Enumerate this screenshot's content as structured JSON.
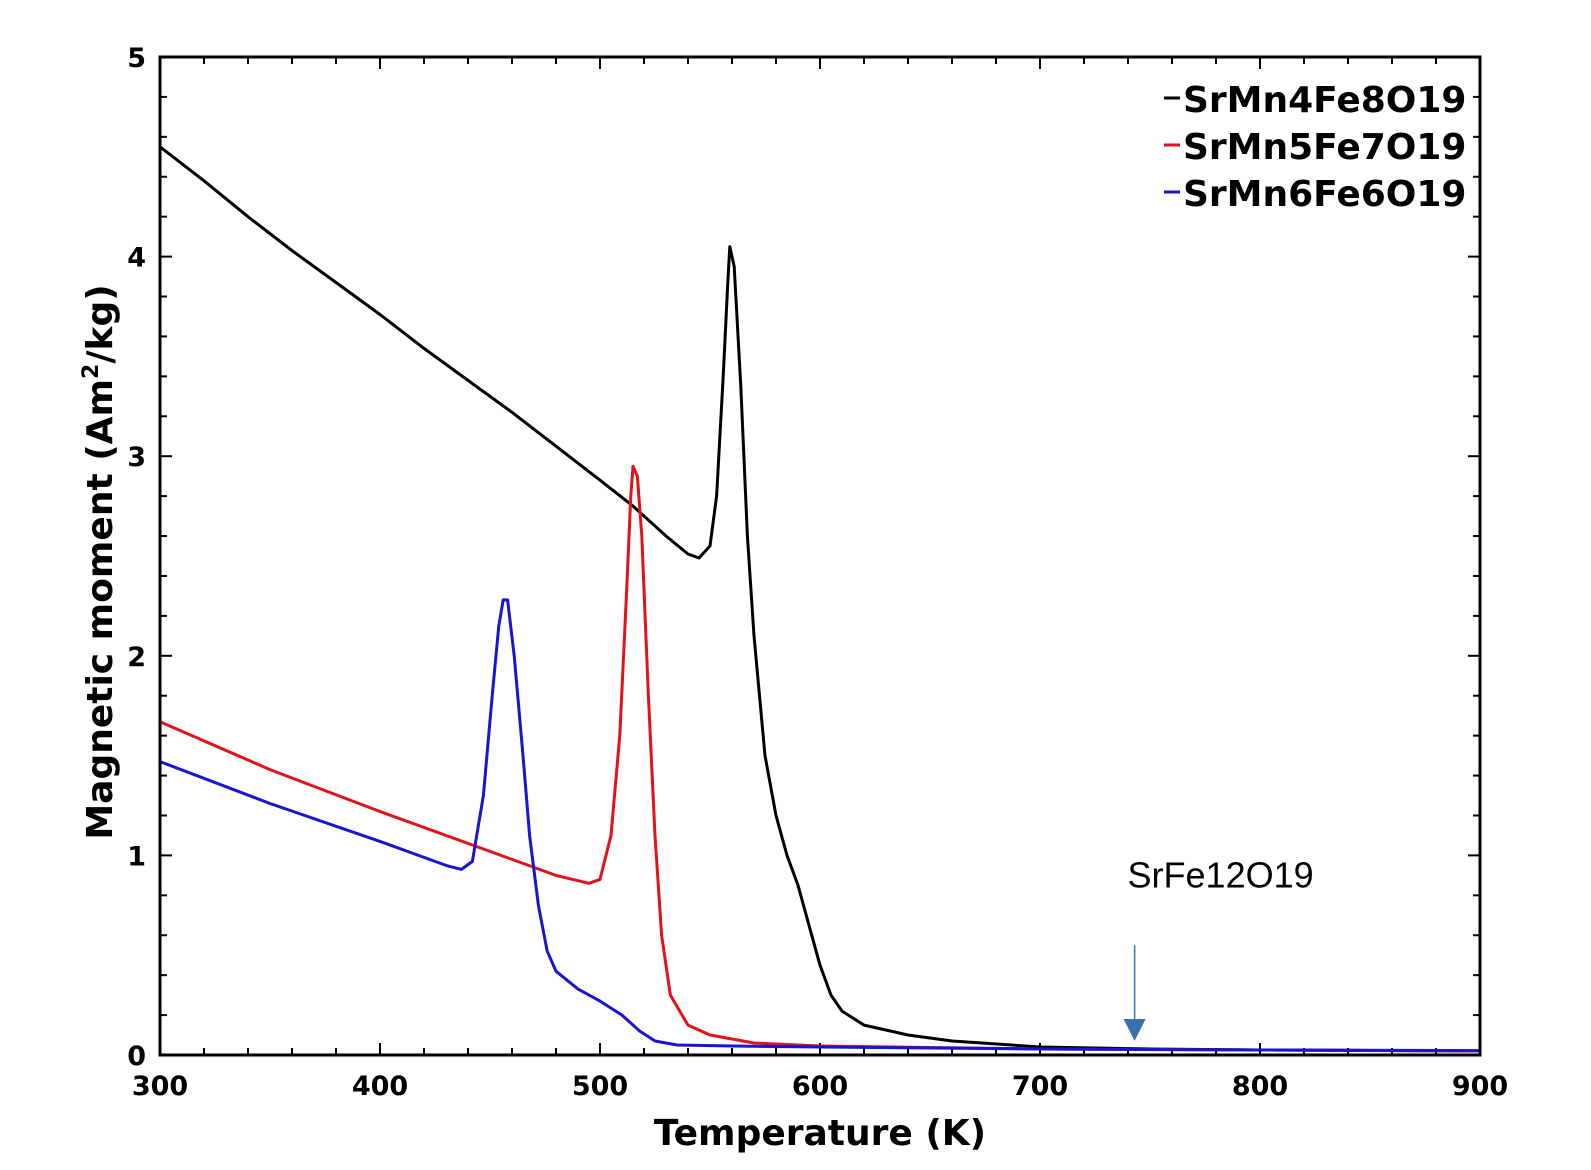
{
  "chart_data": {
    "type": "line",
    "title": "",
    "xlabel": "Temperature (K)",
    "ylabel": "Magnetic moment (Am",
    "ylabel_sup": "2",
    "ylabel_tail": "/kg)",
    "xlim": [
      300,
      900
    ],
    "ylim": [
      0,
      5
    ],
    "xticks": [
      "300",
      "400",
      "500",
      "600",
      "700",
      "800",
      "900"
    ],
    "yticks": [
      "0",
      "1",
      "2",
      "3",
      "4",
      "5"
    ],
    "grid": false,
    "legend": "top-right",
    "series": [
      {
        "name": "SrMn4Fe8O19",
        "color": "#000000",
        "points": [
          [
            300,
            4.55
          ],
          [
            320,
            4.38
          ],
          [
            340,
            4.2
          ],
          [
            360,
            4.03
          ],
          [
            380,
            3.87
          ],
          [
            400,
            3.71
          ],
          [
            420,
            3.54
          ],
          [
            440,
            3.38
          ],
          [
            460,
            3.22
          ],
          [
            480,
            3.05
          ],
          [
            500,
            2.88
          ],
          [
            515,
            2.75
          ],
          [
            530,
            2.6
          ],
          [
            540,
            2.51
          ],
          [
            545,
            2.49
          ],
          [
            550,
            2.55
          ],
          [
            553,
            2.8
          ],
          [
            556,
            3.4
          ],
          [
            558,
            3.85
          ],
          [
            559,
            4.05
          ],
          [
            561,
            3.95
          ],
          [
            564,
            3.35
          ],
          [
            567,
            2.6
          ],
          [
            570,
            2.1
          ],
          [
            575,
            1.5
          ],
          [
            580,
            1.2
          ],
          [
            585,
            1.0
          ],
          [
            590,
            0.85
          ],
          [
            595,
            0.65
          ],
          [
            600,
            0.45
          ],
          [
            605,
            0.3
          ],
          [
            610,
            0.22
          ],
          [
            620,
            0.15
          ],
          [
            640,
            0.1
          ],
          [
            660,
            0.07
          ],
          [
            700,
            0.04
          ],
          [
            750,
            0.03
          ],
          [
            800,
            0.025
          ],
          [
            900,
            0.02
          ]
        ]
      },
      {
        "name": "SrMn5Fe7O19",
        "color": "#e0131b",
        "points": [
          [
            300,
            1.67
          ],
          [
            350,
            1.43
          ],
          [
            400,
            1.22
          ],
          [
            450,
            1.02
          ],
          [
            480,
            0.9
          ],
          [
            495,
            0.86
          ],
          [
            500,
            0.88
          ],
          [
            505,
            1.1
          ],
          [
            509,
            1.6
          ],
          [
            512,
            2.3
          ],
          [
            514,
            2.8
          ],
          [
            515,
            2.95
          ],
          [
            517,
            2.9
          ],
          [
            519,
            2.6
          ],
          [
            522,
            1.8
          ],
          [
            525,
            1.1
          ],
          [
            528,
            0.6
          ],
          [
            532,
            0.3
          ],
          [
            540,
            0.15
          ],
          [
            550,
            0.1
          ],
          [
            570,
            0.06
          ],
          [
            600,
            0.045
          ],
          [
            700,
            0.03
          ],
          [
            800,
            0.025
          ],
          [
            900,
            0.02
          ]
        ]
      },
      {
        "name": "SrMn6Fe6O19",
        "color": "#1515d2",
        "points": [
          [
            300,
            1.47
          ],
          [
            350,
            1.26
          ],
          [
            400,
            1.07
          ],
          [
            430,
            0.95
          ],
          [
            437,
            0.93
          ],
          [
            442,
            0.97
          ],
          [
            447,
            1.3
          ],
          [
            451,
            1.8
          ],
          [
            454,
            2.15
          ],
          [
            456,
            2.28
          ],
          [
            458,
            2.28
          ],
          [
            461,
            2.0
          ],
          [
            465,
            1.5
          ],
          [
            468,
            1.1
          ],
          [
            472,
            0.75
          ],
          [
            476,
            0.52
          ],
          [
            480,
            0.42
          ],
          [
            490,
            0.33
          ],
          [
            500,
            0.27
          ],
          [
            510,
            0.2
          ],
          [
            518,
            0.12
          ],
          [
            525,
            0.07
          ],
          [
            535,
            0.05
          ],
          [
            560,
            0.045
          ],
          [
            600,
            0.04
          ],
          [
            700,
            0.03
          ],
          [
            800,
            0.025
          ],
          [
            900,
            0.022
          ]
        ]
      }
    ],
    "annotations": [
      {
        "text": "SrFe12O19",
        "x": 743,
        "y": 0.9,
        "arrow_from": [
          743,
          0.65
        ],
        "arrow_to": [
          743,
          0.08
        ],
        "color": "#3a6fb0"
      }
    ]
  }
}
